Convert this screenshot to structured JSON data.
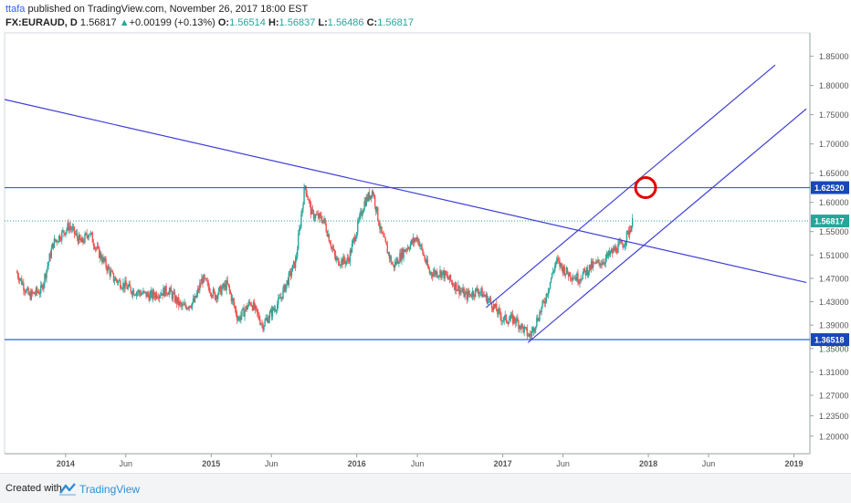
{
  "header": {
    "author": "ttafa",
    "published_text": "published on TradingView.com, November 26, 2017 18:00 EST",
    "symbol": "FX:EURAUD, D",
    "last": "1.56817",
    "change_arrow": "▲",
    "change": "+0.00199 (+0.13%)",
    "open_label": "O:",
    "open": "1.56514",
    "high_label": "H:",
    "high": "1.56837",
    "low_label": "L:",
    "low": "1.56486",
    "close_label": "C:",
    "close": "1.56817"
  },
  "footer": {
    "created_with": "Created with",
    "brand": "TradingView"
  },
  "colors": {
    "up": "#26a69a",
    "down": "#ef5350",
    "trendline": "#3f3fd8",
    "level": "#2962ff",
    "last_price": "#26a69a",
    "circle": "#e00000"
  },
  "chart_data": {
    "type": "candlestick",
    "symbol": "FX:EURAUD",
    "interval": "D",
    "x_ticks": [
      "2014",
      "Jun",
      "2015",
      "Jun",
      "2016",
      "Jun",
      "2017",
      "Jun",
      "2018",
      "Jun",
      "2019"
    ],
    "x_tick_dates": [
      "2014-01-01",
      "2014-06-01",
      "2015-01-01",
      "2015-06-01",
      "2016-01-01",
      "2016-06-01",
      "2017-01-01",
      "2017-06-01",
      "2018-01-01",
      "2018-06-01",
      "2019-01-01"
    ],
    "y_ticks": [
      "1.85000",
      "1.80000",
      "1.75000",
      "1.70000",
      "1.65000",
      "1.60000",
      "1.55000",
      "1.51000",
      "1.47000",
      "1.43000",
      "1.39000",
      "1.35000",
      "1.31000",
      "1.27000",
      "1.23500",
      "1.20000"
    ],
    "y_range": [
      1.17,
      1.89
    ],
    "price_labels": [
      {
        "text": "1.62520",
        "value": 1.6252,
        "kind": "level"
      },
      {
        "text": "1.56817",
        "value": 1.56817,
        "kind": "last"
      },
      {
        "text": "1.36518",
        "value": 1.36518,
        "kind": "level"
      }
    ],
    "series_path": [
      [
        "2013-09-01",
        1.48
      ],
      [
        "2013-10-01",
        1.44
      ],
      [
        "2013-11-01",
        1.45
      ],
      [
        "2013-12-01",
        1.53
      ],
      [
        "2014-01-10",
        1.56
      ],
      [
        "2014-02-10",
        1.53
      ],
      [
        "2014-03-01",
        1.55
      ],
      [
        "2014-03-20",
        1.52
      ],
      [
        "2014-05-01",
        1.47
      ],
      [
        "2014-06-15",
        1.45
      ],
      [
        "2014-08-01",
        1.44
      ],
      [
        "2014-09-15",
        1.45
      ],
      [
        "2014-10-20",
        1.42
      ],
      [
        "2014-11-20",
        1.43
      ],
      [
        "2014-12-10",
        1.47
      ],
      [
        "2015-01-10",
        1.44
      ],
      [
        "2015-02-10",
        1.46
      ],
      [
        "2015-03-10",
        1.4
      ],
      [
        "2015-04-10",
        1.43
      ],
      [
        "2015-05-10",
        1.39
      ],
      [
        "2015-06-20",
        1.43
      ],
      [
        "2015-08-01",
        1.5
      ],
      [
        "2015-08-24",
        1.63
      ],
      [
        "2015-09-10",
        1.58
      ],
      [
        "2015-10-10",
        1.57
      ],
      [
        "2015-11-10",
        1.5
      ],
      [
        "2015-12-10",
        1.5
      ],
      [
        "2016-01-20",
        1.6
      ],
      [
        "2016-02-10",
        1.62
      ],
      [
        "2016-03-01",
        1.55
      ],
      [
        "2016-04-01",
        1.49
      ],
      [
        "2016-05-01",
        1.52
      ],
      [
        "2016-06-01",
        1.54
      ],
      [
        "2016-07-01",
        1.48
      ],
      [
        "2016-08-01",
        1.48
      ],
      [
        "2016-09-01",
        1.46
      ],
      [
        "2016-10-01",
        1.44
      ],
      [
        "2016-11-01",
        1.45
      ],
      [
        "2016-12-01",
        1.43
      ],
      [
        "2017-01-01",
        1.4
      ],
      [
        "2017-02-01",
        1.4
      ],
      [
        "2017-03-10",
        1.37
      ],
      [
        "2017-04-15",
        1.43
      ],
      [
        "2017-05-15",
        1.5
      ],
      [
        "2017-06-10",
        1.48
      ],
      [
        "2017-07-10",
        1.47
      ],
      [
        "2017-08-10",
        1.49
      ],
      [
        "2017-09-10",
        1.5
      ],
      [
        "2017-10-10",
        1.52
      ],
      [
        "2017-10-31",
        1.53
      ],
      [
        "2017-11-24",
        1.56817
      ]
    ],
    "drawings": [
      {
        "type": "trendline",
        "from": [
          "2013-08-01",
          1.776
        ],
        "to": [
          "2019-02-01",
          1.463
        ]
      },
      {
        "type": "trendline",
        "from": [
          "2016-11-20",
          1.42
        ],
        "to": [
          "2018-11-15",
          1.835
        ]
      },
      {
        "type": "trendline",
        "from": [
          "2017-03-05",
          1.36
        ],
        "to": [
          "2019-02-01",
          1.76
        ]
      },
      {
        "type": "horizontal",
        "value": 1.6252
      },
      {
        "type": "horizontal",
        "value": 1.36518
      },
      {
        "type": "circle",
        "at": [
          "2017-12-25",
          1.6252
        ]
      }
    ]
  }
}
